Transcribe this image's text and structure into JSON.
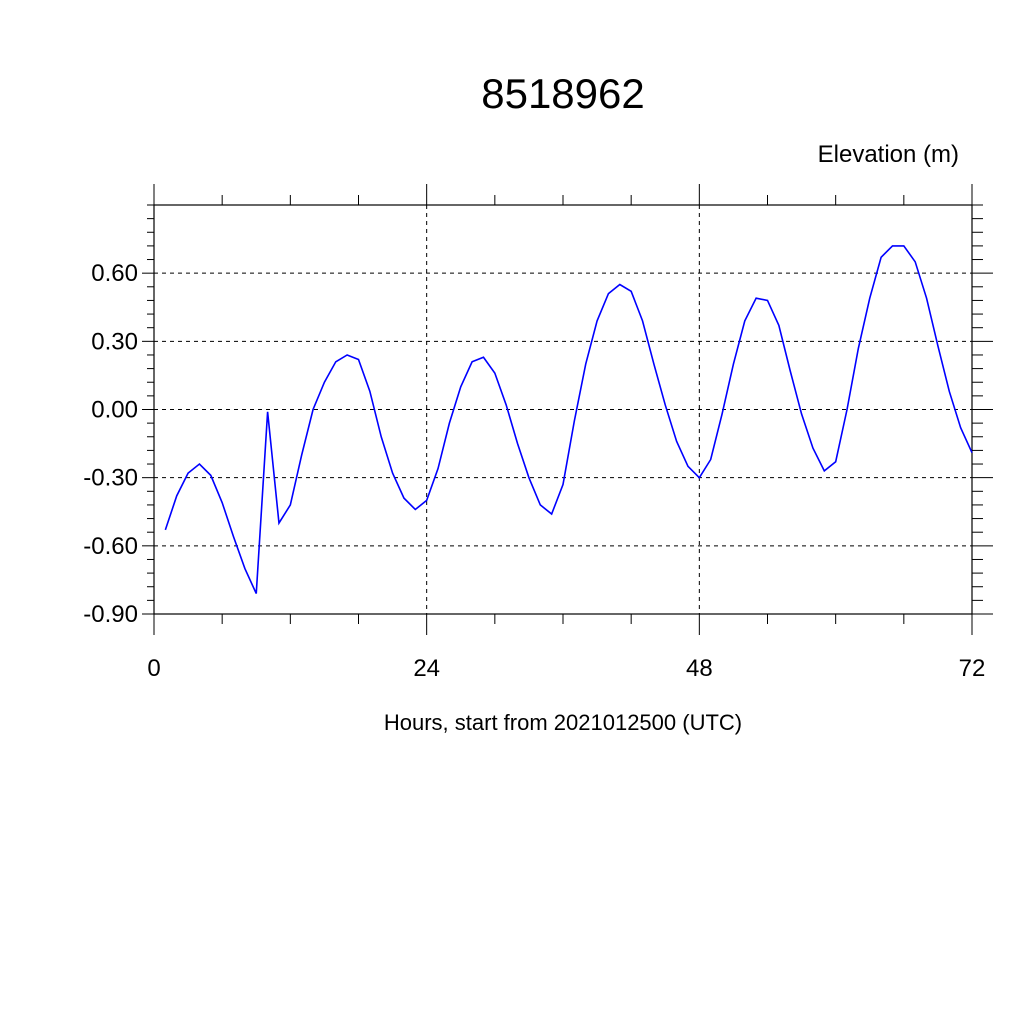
{
  "chart_data": {
    "type": "line",
    "title": "8518962",
    "units_label": "Elevation (m)",
    "xlabel": "Hours, start from 2021012500 (UTC)",
    "ylabel": "",
    "xlim": [
      0,
      72
    ],
    "ylim": [
      -0.9,
      0.9
    ],
    "x_ticks": [
      0,
      24,
      48,
      72
    ],
    "x_tick_labels": [
      "0",
      "24",
      "48",
      "72"
    ],
    "y_ticks": [
      -0.9,
      -0.6,
      -0.3,
      0.0,
      0.3,
      0.6
    ],
    "y_tick_labels": [
      "-0.90",
      "-0.60",
      "-0.30",
      "0.00",
      "0.30",
      "0.60"
    ],
    "grid": true,
    "line_color": "#0000ff",
    "series": [
      {
        "x": [
          1,
          2,
          3,
          4,
          5,
          6,
          7,
          8,
          9,
          10,
          11,
          12,
          13,
          14,
          15,
          16,
          17,
          18,
          19,
          20,
          21,
          22,
          23,
          24,
          25,
          26,
          27,
          28,
          29,
          30,
          31,
          32,
          33,
          34,
          35,
          36,
          37,
          38,
          39,
          40,
          41,
          42,
          43,
          44,
          45,
          46,
          47,
          48,
          49,
          50,
          51,
          52,
          53,
          54,
          55,
          56,
          57,
          58,
          59,
          60,
          61,
          62,
          63,
          64,
          65,
          66,
          67,
          68,
          69,
          70,
          71,
          72
        ],
        "values": [
          -0.53,
          -0.38,
          -0.28,
          -0.24,
          -0.29,
          -0.41,
          -0.56,
          -0.7,
          -0.81,
          -0.01,
          -0.5,
          -0.42,
          -0.2,
          0.0,
          0.12,
          0.21,
          0.24,
          0.22,
          0.08,
          -0.12,
          -0.28,
          -0.39,
          -0.44,
          -0.4,
          -0.26,
          -0.06,
          0.1,
          0.21,
          0.23,
          0.16,
          0.02,
          -0.15,
          -0.3,
          -0.42,
          -0.46,
          -0.33,
          -0.05,
          0.2,
          0.39,
          0.51,
          0.55,
          0.52,
          0.39,
          0.2,
          0.02,
          -0.14,
          -0.25,
          -0.3,
          -0.22,
          -0.02,
          0.2,
          0.39,
          0.49,
          0.48,
          0.37,
          0.17,
          -0.02,
          -0.17,
          -0.27,
          -0.23,
          0.0,
          0.27,
          0.49,
          0.67,
          0.72,
          0.72,
          0.65,
          0.49,
          0.28,
          0.08,
          -0.08,
          -0.19
        ]
      }
    ]
  }
}
